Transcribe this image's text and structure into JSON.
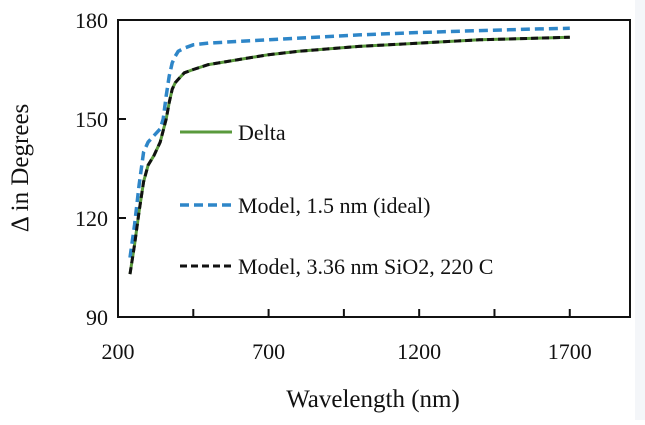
{
  "chart_data": {
    "type": "line",
    "title": "",
    "xlabel": "Wavelength (nm)",
    "ylabel": "Δ in Degrees",
    "xlim": [
      200,
      1900
    ],
    "ylim": [
      90,
      180
    ],
    "xticks": [
      200,
      700,
      1200,
      1700
    ],
    "yticks": [
      90,
      120,
      150,
      180
    ],
    "grid": false,
    "legend_position": "center",
    "series": [
      {
        "name": "Delta",
        "style": "solid",
        "color": "#5a9a3c",
        "x": [
          240,
          255,
          270,
          285,
          300,
          320,
          340,
          360,
          370,
          380,
          390,
          400,
          420,
          450,
          500,
          600,
          700,
          800,
          1000,
          1200,
          1400,
          1600,
          1700
        ],
        "y": [
          103,
          112,
          122,
          131,
          136,
          139,
          143,
          150,
          155,
          159,
          161,
          162,
          164,
          165,
          166.5,
          168,
          169.5,
          170.5,
          172,
          173,
          174,
          174.5,
          174.8
        ]
      },
      {
        "name": "Model, 1.5 nm (ideal)",
        "style": "dashed",
        "color": "#2e86c8",
        "x": [
          240,
          255,
          270,
          285,
          300,
          320,
          340,
          350,
          360,
          370,
          380,
          390,
          400,
          420,
          450,
          500,
          600,
          700,
          800,
          1000,
          1200,
          1400,
          1600,
          1700
        ],
        "y": [
          108,
          118,
          130,
          140,
          143,
          145,
          147,
          150,
          157,
          163,
          167,
          169,
          170.5,
          171.5,
          172.5,
          173,
          173.5,
          174,
          174.5,
          175.5,
          176.2,
          176.8,
          177.3,
          177.5
        ]
      },
      {
        "name": "Model, 3.36 nm SiO2, 220 C",
        "style": "dashed",
        "color": "#111111",
        "x": [
          240,
          255,
          270,
          285,
          300,
          320,
          340,
          360,
          370,
          380,
          390,
          400,
          420,
          450,
          500,
          600,
          700,
          800,
          1000,
          1200,
          1400,
          1600,
          1700
        ],
        "y": [
          103,
          112,
          122,
          131,
          136,
          139,
          143,
          150,
          155,
          159,
          161,
          162,
          164,
          165,
          166.5,
          168,
          169.5,
          170.5,
          172,
          173,
          174,
          174.5,
          174.8
        ]
      }
    ]
  }
}
